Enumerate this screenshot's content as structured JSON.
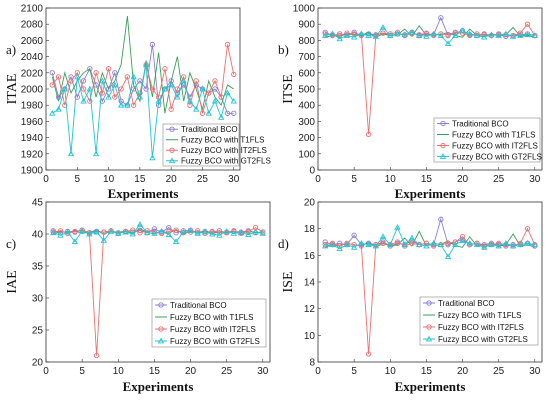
{
  "chart_data": [
    {
      "type": "line",
      "panel_label": "a)",
      "ylabel": "ITAE",
      "xlabel": "Experiments",
      "xlim": [
        0,
        31
      ],
      "xticks": [
        0,
        5,
        10,
        15,
        20,
        25,
        30
      ],
      "ylim": [
        1900,
        2100
      ],
      "yticks": [
        1900,
        1920,
        1940,
        1960,
        1980,
        2000,
        2020,
        2040,
        2060,
        2080,
        2100
      ],
      "legend_position": "bottom-right",
      "x": [
        1,
        2,
        3,
        4,
        5,
        6,
        7,
        8,
        9,
        10,
        11,
        12,
        13,
        14,
        15,
        16,
        17,
        18,
        19,
        20,
        21,
        22,
        23,
        24,
        25,
        26,
        27,
        28,
        29,
        30
      ],
      "series": [
        {
          "name": "Traditional BCO",
          "color": "#8a7fd8",
          "marker": "circle",
          "values": [
            2020,
            1990,
            2000,
            2015,
            1990,
            2010,
            2025,
            2005,
            1985,
            2000,
            2020,
            1985,
            1980,
            2000,
            2010,
            2000,
            2055,
            1980,
            2000,
            2010,
            1995,
            2005,
            1990,
            2005,
            2000,
            1995,
            2000,
            1990,
            1970,
            1970
          ]
        },
        {
          "name": "Fuzzy BCO with T1FLS",
          "color": "#3aa05a",
          "marker": "line",
          "values": [
            2015,
            1985,
            2020,
            1995,
            2010,
            2020,
            2025,
            1990,
            2020,
            2000,
            2010,
            2030,
            2090,
            2005,
            1985,
            2035,
            1990,
            2045,
            1970,
            2010,
            2040,
            1985,
            2020,
            2000,
            1975,
            2010,
            1990,
            1980,
            2005,
            2000
          ]
        },
        {
          "name": "Fuzzy BCO with IT2FLS",
          "color": "#ef6f6f",
          "marker": "circle",
          "values": [
            2005,
            2015,
            1980,
            2010,
            2020,
            2000,
            1985,
            2020,
            1995,
            2025,
            1990,
            2000,
            2015,
            1980,
            1995,
            2030,
            2000,
            1990,
            2025,
            1975,
            2000,
            2015,
            1980,
            2010,
            1970,
            1995,
            2010,
            1990,
            2055,
            2018
          ]
        },
        {
          "name": "Fuzzy BCO with GT2FLS",
          "color": "#22c5d5",
          "marker": "triangle",
          "values": [
            1970,
            1975,
            2000,
            1920,
            2015,
            1985,
            2000,
            1920,
            2010,
            1990,
            2005,
            1980,
            1980,
            2015,
            1990,
            2030,
            1915,
            1985,
            2000,
            2005,
            1990,
            2010,
            1985,
            1975,
            2000,
            1970,
            1985,
            1965,
            1995,
            1985
          ]
        }
      ]
    },
    {
      "type": "line",
      "panel_label": "b)",
      "ylabel": "ITSE",
      "xlabel": "Experiments",
      "xlim": [
        0,
        31
      ],
      "xticks": [
        0,
        5,
        10,
        15,
        20,
        25,
        30
      ],
      "ylim": [
        0,
        1000
      ],
      "yticks": [
        0,
        100,
        200,
        300,
        400,
        500,
        600,
        700,
        800,
        900,
        1000
      ],
      "legend_position": "bottom-right",
      "x": [
        1,
        2,
        3,
        4,
        5,
        6,
        7,
        8,
        9,
        10,
        11,
        12,
        13,
        14,
        15,
        16,
        17,
        18,
        19,
        20,
        21,
        22,
        23,
        24,
        25,
        26,
        27,
        28,
        29,
        30
      ],
      "series": [
        {
          "name": "Traditional BCO",
          "color": "#8a7fd8",
          "marker": "circle",
          "values": [
            850,
            830,
            840,
            835,
            850,
            830,
            840,
            835,
            845,
            830,
            840,
            835,
            850,
            830,
            840,
            835,
            940,
            830,
            845,
            860,
            835,
            830,
            840,
            830,
            835,
            825,
            830,
            835,
            840,
            830
          ]
        },
        {
          "name": "Fuzzy BCO with T1FLS",
          "color": "#3aa05a",
          "marker": "line",
          "values": [
            820,
            830,
            825,
            840,
            835,
            830,
            850,
            820,
            840,
            830,
            835,
            870,
            825,
            890,
            830,
            840,
            835,
            850,
            830,
            820,
            870,
            830,
            825,
            840,
            830,
            835,
            880,
            825,
            830,
            820
          ]
        },
        {
          "name": "Fuzzy BCO with IT2FLS",
          "color": "#ef6f6f",
          "marker": "circle",
          "values": [
            840,
            835,
            830,
            845,
            840,
            835,
            220,
            830,
            845,
            840,
            850,
            830,
            840,
            835,
            845,
            830,
            840,
            835,
            850,
            845,
            830,
            840,
            835,
            830,
            840,
            835,
            830,
            845,
            900,
            830
          ]
        },
        {
          "name": "Fuzzy BCO with GT2FLS",
          "color": "#22c5d5",
          "marker": "triangle",
          "values": [
            830,
            840,
            810,
            830,
            820,
            840,
            830,
            825,
            880,
            830,
            840,
            835,
            850,
            830,
            825,
            840,
            830,
            780,
            830,
            860,
            840,
            830,
            820,
            835,
            830,
            840,
            825,
            830,
            835,
            830
          ]
        }
      ]
    },
    {
      "type": "line",
      "panel_label": "c)",
      "ylabel": "IAE",
      "xlabel": "Experiments",
      "xlim": [
        0,
        31
      ],
      "xticks": [
        0,
        5,
        10,
        15,
        20,
        25,
        30
      ],
      "ylim": [
        20,
        45
      ],
      "yticks": [
        20,
        25,
        30,
        35,
        40,
        45
      ],
      "legend_position": "bottom-right",
      "x": [
        1,
        2,
        3,
        4,
        5,
        6,
        7,
        8,
        9,
        10,
        11,
        12,
        13,
        14,
        15,
        16,
        17,
        18,
        19,
        20,
        21,
        22,
        23,
        24,
        25,
        26,
        27,
        28,
        29,
        30
      ],
      "series": [
        {
          "name": "Traditional BCO",
          "color": "#8a7fd8",
          "marker": "circle",
          "values": [
            40.5,
            40.2,
            40.4,
            40.3,
            40.6,
            40.2,
            40.4,
            40.3,
            40.5,
            40.2,
            40.4,
            40.3,
            40.6,
            40.2,
            40.8,
            40.3,
            41.0,
            40.2,
            40.5,
            40.6,
            40.2,
            40.4,
            40.3,
            40.5,
            40.2,
            40.4,
            40.3,
            40.5,
            40.2,
            40.3
          ]
        },
        {
          "name": "Fuzzy BCO with T1FLS",
          "color": "#3aa05a",
          "marker": "line",
          "values": [
            40.0,
            40.4,
            40.2,
            40.5,
            40.1,
            40.3,
            40.6,
            40.0,
            40.4,
            40.2,
            40.5,
            40.1,
            40.8,
            40.3,
            40.0,
            40.5,
            40.1,
            40.7,
            40.0,
            40.4,
            40.2,
            40.5,
            40.1,
            40.3,
            40.2,
            40.4,
            40.1,
            40.5,
            40.2,
            40.3
          ]
        },
        {
          "name": "Fuzzy BCO with IT2FLS",
          "color": "#ef6f6f",
          "marker": "circle",
          "values": [
            40.3,
            40.5,
            40.1,
            40.4,
            40.6,
            40.2,
            21.0,
            40.3,
            40.5,
            40.1,
            40.4,
            40.6,
            40.2,
            40.5,
            40.3,
            40.1,
            40.4,
            40.6,
            40.2,
            40.3,
            40.5,
            40.1,
            40.4,
            40.2,
            40.3,
            40.5,
            40.1,
            40.4,
            41.0,
            40.3
          ]
        },
        {
          "name": "Fuzzy BCO with GT2FLS",
          "color": "#22c5d5",
          "marker": "triangle",
          "values": [
            40.2,
            39.8,
            40.3,
            38.8,
            40.5,
            40.0,
            40.3,
            39.0,
            40.4,
            40.1,
            40.3,
            40.0,
            41.5,
            40.2,
            40.1,
            40.4,
            39.9,
            38.8,
            40.3,
            40.5,
            40.1,
            40.3,
            40.0,
            39.8,
            40.4,
            40.1,
            40.2,
            39.9,
            40.3,
            40.1
          ]
        }
      ]
    },
    {
      "type": "line",
      "panel_label": "d)",
      "ylabel": "ISE",
      "xlabel": "Experiments",
      "xlim": [
        0,
        31
      ],
      "xticks": [
        0,
        5,
        10,
        15,
        20,
        25,
        30
      ],
      "ylim": [
        8,
        20
      ],
      "yticks": [
        8,
        10,
        12,
        14,
        16,
        18,
        20
      ],
      "legend_position": "bottom-right",
      "x": [
        1,
        2,
        3,
        4,
        5,
        6,
        7,
        8,
        9,
        10,
        11,
        12,
        13,
        14,
        15,
        16,
        17,
        18,
        19,
        20,
        21,
        22,
        23,
        24,
        25,
        26,
        27,
        28,
        29,
        30
      ],
      "series": [
        {
          "name": "Traditional BCO",
          "color": "#8a7fd8",
          "marker": "circle",
          "values": [
            17.0,
            16.8,
            16.9,
            16.8,
            17.5,
            16.8,
            16.9,
            16.8,
            17.0,
            16.7,
            16.9,
            16.8,
            17.1,
            16.8,
            16.9,
            16.8,
            18.7,
            16.8,
            17.0,
            17.2,
            16.8,
            16.9,
            16.8,
            16.9,
            16.8,
            16.7,
            16.8,
            16.8,
            16.9,
            16.7
          ]
        },
        {
          "name": "Fuzzy BCO with T1FLS",
          "color": "#3aa05a",
          "marker": "line",
          "values": [
            16.6,
            16.8,
            16.7,
            16.9,
            16.8,
            16.7,
            17.0,
            16.6,
            16.9,
            16.7,
            16.8,
            17.3,
            16.7,
            17.8,
            16.7,
            16.9,
            16.8,
            17.1,
            16.7,
            16.6,
            17.4,
            16.7,
            16.8,
            16.9,
            16.7,
            16.8,
            17.6,
            16.7,
            16.8,
            16.6
          ]
        },
        {
          "name": "Fuzzy BCO with IT2FLS",
          "color": "#ef6f6f",
          "marker": "circle",
          "values": [
            16.8,
            16.9,
            16.7,
            16.9,
            16.8,
            16.7,
            8.6,
            16.8,
            16.9,
            16.8,
            17.0,
            16.7,
            16.9,
            16.8,
            16.9,
            16.7,
            16.8,
            16.9,
            17.0,
            17.4,
            16.8,
            16.9,
            16.7,
            16.8,
            16.9,
            16.8,
            16.7,
            16.9,
            18.0,
            16.8
          ]
        },
        {
          "name": "Fuzzy BCO with GT2FLS",
          "color": "#22c5d5",
          "marker": "triangle",
          "values": [
            16.7,
            16.8,
            16.5,
            16.8,
            16.6,
            16.9,
            16.8,
            16.7,
            17.4,
            16.8,
            18.1,
            16.8,
            17.3,
            16.8,
            16.7,
            16.9,
            16.8,
            15.9,
            16.8,
            17.1,
            16.9,
            16.8,
            16.6,
            16.8,
            16.7,
            16.9,
            16.7,
            16.8,
            16.9,
            16.8
          ]
        }
      ]
    }
  ]
}
